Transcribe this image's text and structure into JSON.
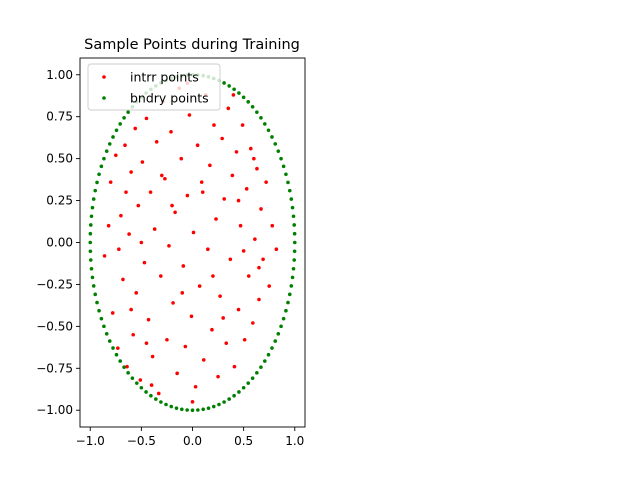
{
  "chart_data": {
    "type": "scatter",
    "title": "Sample Points during Training",
    "xlabel": "",
    "ylabel": "",
    "xlim": [
      -1.1,
      1.1
    ],
    "ylim": [
      -1.1,
      1.1
    ],
    "x_ticks": [
      -1.0,
      -0.5,
      0.0,
      0.5,
      1.0
    ],
    "y_ticks": [
      -1.0,
      -0.75,
      -0.5,
      -0.25,
      0.0,
      0.25,
      0.5,
      0.75,
      1.0
    ],
    "x_tick_labels": [
      "−1.0",
      "−0.5",
      "0.0",
      "0.5",
      "1.0"
    ],
    "y_tick_labels": [
      "−1.00",
      "−0.75",
      "−0.50",
      "−0.25",
      "0.00",
      "0.25",
      "0.50",
      "0.75",
      "1.00"
    ],
    "grid": false,
    "legend_position": "upper-left",
    "series": [
      {
        "name": "intrr points",
        "color": "#ff0000",
        "points": [
          [
            -0.86,
            -0.08
          ],
          [
            -0.8,
            0.36
          ],
          [
            -0.78,
            -0.42
          ],
          [
            -0.75,
            0.52
          ],
          [
            -0.73,
            -0.63
          ],
          [
            -0.7,
            0.16
          ],
          [
            -0.68,
            -0.22
          ],
          [
            -0.66,
            0.58
          ],
          [
            -0.64,
            -0.74
          ],
          [
            -0.62,
            0.05
          ],
          [
            -0.6,
            0.42
          ],
          [
            -0.58,
            -0.55
          ],
          [
            -0.56,
            0.68
          ],
          [
            -0.55,
            -0.3
          ],
          [
            -0.53,
            0.22
          ],
          [
            -0.51,
            -0.82
          ],
          [
            -0.49,
            0.48
          ],
          [
            -0.47,
            -0.12
          ],
          [
            -0.45,
            0.74
          ],
          [
            -0.43,
            -0.46
          ],
          [
            -0.41,
            0.3
          ],
          [
            -0.39,
            -0.68
          ],
          [
            -0.37,
            0.08
          ],
          [
            -0.35,
            0.6
          ],
          [
            -0.33,
            -0.9
          ],
          [
            -0.31,
            -0.2
          ],
          [
            -0.29,
            0.84
          ],
          [
            -0.27,
            0.38
          ],
          [
            -0.25,
            -0.58
          ],
          [
            -0.23,
            -0.02
          ],
          [
            -0.21,
            0.66
          ],
          [
            -0.19,
            -0.36
          ],
          [
            -0.17,
            0.18
          ],
          [
            -0.15,
            -0.78
          ],
          [
            -0.13,
            0.92
          ],
          [
            -0.11,
            0.5
          ],
          [
            -0.09,
            -0.14
          ],
          [
            -0.07,
            -0.62
          ],
          [
            -0.05,
            0.28
          ],
          [
            -0.03,
            0.76
          ],
          [
            -0.01,
            -0.44
          ],
          [
            0.01,
            0.06
          ],
          [
            0.03,
            -0.86
          ],
          [
            0.05,
            0.58
          ],
          [
            0.07,
            -0.26
          ],
          [
            0.09,
            0.36
          ],
          [
            0.11,
            -0.7
          ],
          [
            0.13,
            0.88
          ],
          [
            0.15,
            -0.04
          ],
          [
            0.17,
            0.46
          ],
          [
            0.19,
            -0.52
          ],
          [
            0.21,
            0.7
          ],
          [
            0.23,
            0.14
          ],
          [
            0.25,
            -0.8
          ],
          [
            0.27,
            -0.32
          ],
          [
            0.29,
            0.62
          ],
          [
            0.31,
            0.26
          ],
          [
            0.33,
            -0.6
          ],
          [
            0.35,
            0.8
          ],
          [
            0.37,
            -0.1
          ],
          [
            0.39,
            0.4
          ],
          [
            0.41,
            -0.74
          ],
          [
            0.43,
            0.54
          ],
          [
            0.45,
            -0.4
          ],
          [
            0.47,
            0.1
          ],
          [
            0.49,
            0.7
          ],
          [
            0.51,
            -0.58
          ],
          [
            0.53,
            0.32
          ],
          [
            0.55,
            -0.2
          ],
          [
            0.57,
            0.56
          ],
          [
            0.59,
            -0.48
          ],
          [
            0.61,
            0.02
          ],
          [
            0.63,
            0.44
          ],
          [
            0.65,
            -0.34
          ],
          [
            0.67,
            0.2
          ],
          [
            0.69,
            -0.1
          ],
          [
            0.72,
            0.36
          ],
          [
            0.75,
            -0.26
          ],
          [
            0.78,
            0.1
          ],
          [
            0.82,
            -0.04
          ],
          [
            -0.82,
            0.1
          ],
          [
            -0.72,
            -0.04
          ],
          [
            -0.5,
            0.0
          ],
          [
            -0.2,
            0.22
          ],
          [
            0.2,
            -0.2
          ],
          [
            0.5,
            -0.05
          ],
          [
            -0.4,
            -0.85
          ],
          [
            0.4,
            0.88
          ],
          [
            -0.05,
            0.95
          ],
          [
            0.0,
            -0.95
          ],
          [
            -0.6,
            -0.4
          ],
          [
            0.6,
            0.5
          ],
          [
            -0.3,
            0.4
          ],
          [
            0.3,
            -0.45
          ],
          [
            -0.1,
            -0.3
          ],
          [
            0.1,
            0.3
          ],
          [
            -0.65,
            0.3
          ],
          [
            0.65,
            -0.15
          ],
          [
            -0.45,
            -0.6
          ],
          [
            0.45,
            0.25
          ]
        ]
      },
      {
        "name": "bndry points",
        "color": "#008000",
        "shape": "ellipse",
        "semi_axis_x": 1.0,
        "semi_axis_y": 1.0,
        "count": 120
      }
    ]
  }
}
